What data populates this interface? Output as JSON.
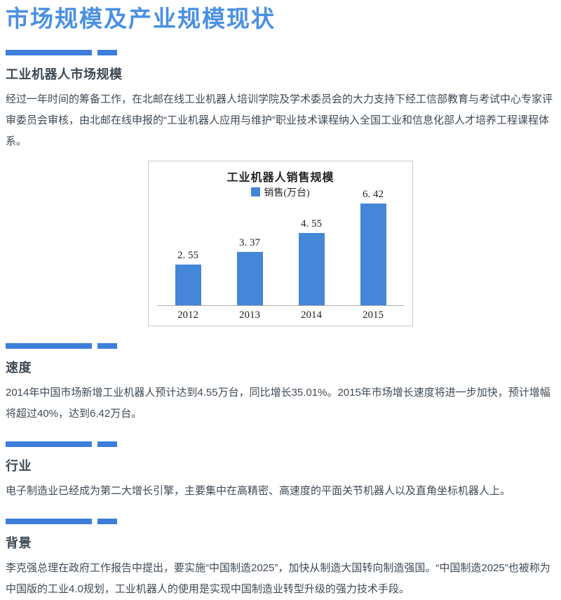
{
  "page": {
    "title": "市场规模及产业规模现状",
    "title_color": "#4a90e2",
    "accent_color": "#3d7edb",
    "body_text_color": "#3f4a54"
  },
  "sections": [
    {
      "heading": "工业机器人市场规模",
      "body": "经过一年时间的筹备工作，在北邮在线工业机器人培训学院及学术委员会的大力支持下经工信部教育与考试中心专家评审委员会审核，由北邮在线申报的“工业机器人应用与维护”职业技术课程纳入全国工业和信息化部人才培养工程课程体系。"
    },
    {
      "heading": "速度",
      "body": "2014年中国市场新增工业机器人预计达到4.55万台，同比增长35.01%。2015年市场增长速度将进一步加快，预计增幅将超过40%，达到6.42万台。"
    },
    {
      "heading": "行业",
      "body": "电子制造业已经成为第二大增长引擎，主要集中在高精密、高速度的平面关节机器人以及直角坐标机器人上。"
    },
    {
      "heading": "背景",
      "body": "李克强总理在政府工作报告中提出，要实施“中国制造2025”，加快从制造大国转向制造强国。“中国制造2025”也被称为中国版的工业4.0规划，工业机器人的使用是实现中国制造业转型升级的强力技术手段。"
    }
  ],
  "chart_data": {
    "type": "bar",
    "title": "工业机器人销售规模",
    "legend": [
      "销售(万台)"
    ],
    "legend_position": "top",
    "categories": [
      "2012",
      "2013",
      "2014",
      "2015"
    ],
    "values": [
      2.55,
      3.37,
      4.55,
      6.42
    ],
    "value_labels": [
      "2. 55",
      "3. 37",
      "4. 55",
      "6. 42"
    ],
    "ylim": [
      0,
      7
    ],
    "grid": false,
    "bar_color": "#4486d8",
    "border_color": "#c9c9c9"
  }
}
